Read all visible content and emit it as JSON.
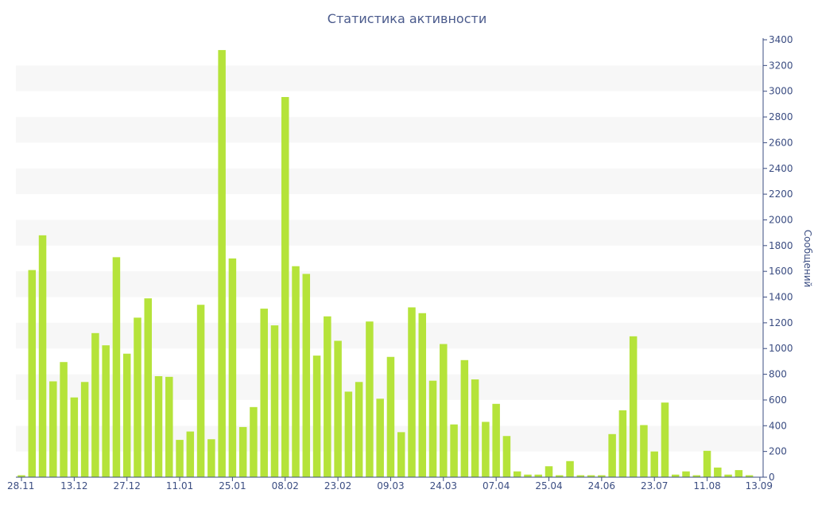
{
  "chart_data": {
    "type": "bar",
    "title": "Статистика активности",
    "ylabel": "Сообщений",
    "ylim": [
      0,
      3400
    ],
    "y_ticks": [
      0,
      200,
      400,
      600,
      800,
      1000,
      1200,
      1400,
      1600,
      1800,
      2000,
      2200,
      2400,
      2600,
      2800,
      3000,
      3200,
      3400
    ],
    "y_axis_side": "right",
    "x_tick_labels": [
      "28.11",
      "13.12",
      "27.12",
      "11.01",
      "25.01",
      "08.02",
      "23.02",
      "09.03",
      "24.03",
      "07.04",
      "25.04",
      "24.06",
      "23.07",
      "11.08",
      "13.09"
    ],
    "x_tick_bar_index": [
      0,
      5,
      10,
      15,
      20,
      25,
      30,
      35,
      40,
      45,
      50,
      55,
      60,
      65,
      70
    ],
    "grid": "alternating horizontal bands",
    "colors": {
      "bar": "#b5e33a",
      "band": "#f7f7f7",
      "axis": "#3b4d82",
      "title": "#4a5a8c"
    },
    "values": [
      15,
      1610,
      1880,
      745,
      895,
      620,
      740,
      1120,
      1025,
      1710,
      960,
      1240,
      1390,
      785,
      780,
      290,
      355,
      1340,
      295,
      3320,
      1700,
      390,
      545,
      1310,
      1180,
      2955,
      1640,
      1580,
      945,
      1250,
      1060,
      665,
      740,
      1210,
      610,
      935,
      350,
      1320,
      1275,
      750,
      1035,
      410,
      910,
      760,
      430,
      570,
      320,
      45,
      20,
      20,
      85,
      15,
      125,
      15,
      15,
      15,
      335,
      520,
      1095,
      405,
      200,
      580,
      20,
      45,
      15,
      205,
      75,
      20,
      55,
      15
    ]
  }
}
